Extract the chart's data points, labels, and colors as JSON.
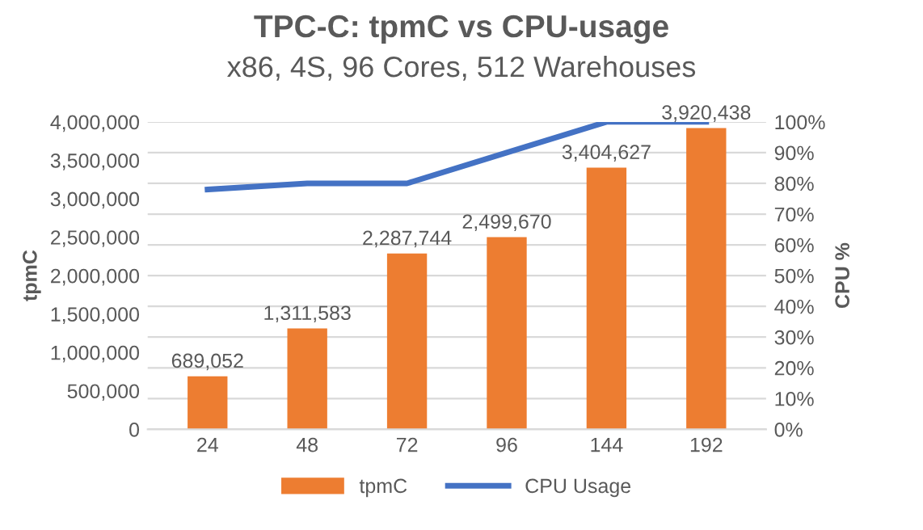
{
  "chart_data": {
    "type": "bar",
    "title": "TPC-C: tpmC vs CPU-usage",
    "subtitle": "x86, 4S, 96 Cores, 512 Warehouses",
    "ylabel": "tpmC",
    "y2label": "CPU %",
    "categories": [
      "24",
      "48",
      "72",
      "96",
      "144",
      "192"
    ],
    "series": [
      {
        "name": "tpmC",
        "color": "#ed7d31",
        "values": [
          689052,
          1311583,
          2287744,
          2499670,
          3404627,
          3920438
        ],
        "value_labels": [
          "689,052",
          "1,311,583",
          "2,287,744",
          "2,499,670",
          "3,404,627",
          "3,920,438"
        ]
      },
      {
        "name": "CPU Usage",
        "type": "line",
        "axis": "y2",
        "color": "#4472c4",
        "values": [
          78,
          80,
          80,
          90,
          100,
          100
        ]
      }
    ],
    "ylim": [
      0,
      4000000
    ],
    "yticks": [
      {
        "value": 0,
        "label": "0"
      },
      {
        "value": 500000,
        "label": "500,000"
      },
      {
        "value": 1000000,
        "label": "1,000,000"
      },
      {
        "value": 1500000,
        "label": "1,500,000"
      },
      {
        "value": 2000000,
        "label": "2,000,000"
      },
      {
        "value": 2500000,
        "label": "2,500,000"
      },
      {
        "value": 3000000,
        "label": "3,000,000"
      },
      {
        "value": 3500000,
        "label": "3,500,000"
      },
      {
        "value": 4000000,
        "label": "4,000,000"
      }
    ],
    "y2lim": [
      0,
      100
    ],
    "y2ticks": [
      {
        "value": 0,
        "label": "0%"
      },
      {
        "value": 10,
        "label": "10%"
      },
      {
        "value": 20,
        "label": "20%"
      },
      {
        "value": 30,
        "label": "30%"
      },
      {
        "value": 40,
        "label": "40%"
      },
      {
        "value": 50,
        "label": "50%"
      },
      {
        "value": 60,
        "label": "60%"
      },
      {
        "value": 70,
        "label": "70%"
      },
      {
        "value": 80,
        "label": "80%"
      },
      {
        "value": 90,
        "label": "90%"
      },
      {
        "value": 100,
        "label": "100%"
      }
    ],
    "grid": "y",
    "legend": "bottom"
  }
}
